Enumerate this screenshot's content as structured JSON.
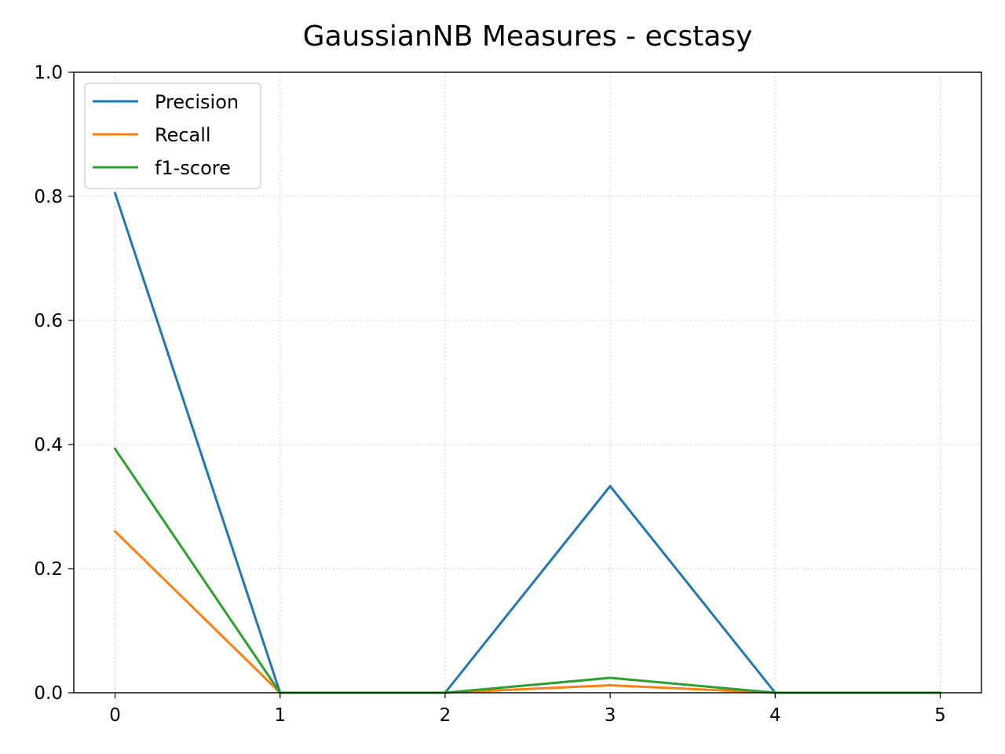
{
  "chart_data": {
    "type": "line",
    "title": "GaussianNB Measures - ecstasy",
    "xlabel": "",
    "ylabel": "",
    "x": [
      0,
      1,
      2,
      3,
      4,
      5
    ],
    "xlim": [
      -0.25,
      5.25
    ],
    "ylim": [
      0,
      1
    ],
    "xticks": [
      "0",
      "1",
      "2",
      "3",
      "4",
      "5"
    ],
    "yticks": [
      "0.0",
      "0.2",
      "0.4",
      "0.6",
      "0.8",
      "1.0"
    ],
    "grid": true,
    "legend_position": "top-left",
    "series": [
      {
        "name": "Precision",
        "color": "#1f77b4",
        "values": [
          0.805,
          0.0,
          0.0,
          0.333,
          0.0,
          0.0
        ]
      },
      {
        "name": "Recall",
        "color": "#ff7f0e",
        "values": [
          0.26,
          0.0,
          0.0,
          0.012,
          0.0,
          0.0
        ]
      },
      {
        "name": "f1-score",
        "color": "#2ca02c",
        "values": [
          0.393,
          0.0,
          0.0,
          0.024,
          0.0,
          0.0
        ]
      }
    ]
  }
}
